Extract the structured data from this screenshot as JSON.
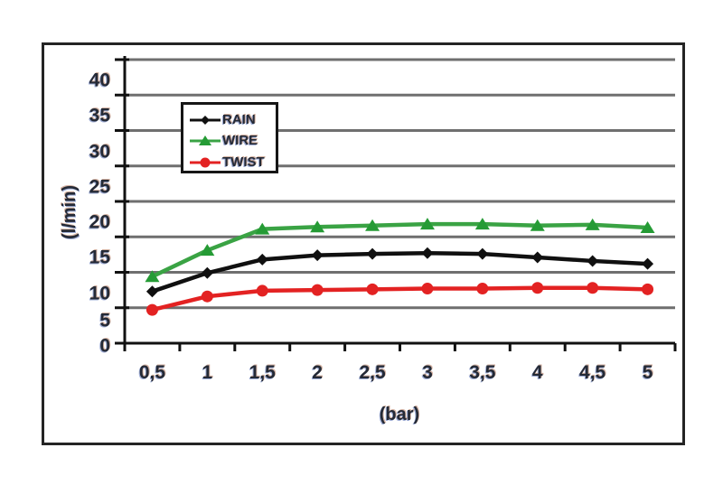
{
  "figure": {
    "type_note": "scanned line chart, no title visible",
    "colors": {
      "rain": "#101010",
      "wire_line": "#3aa344",
      "wire_marker": "#259b35",
      "twist": "#e32222",
      "gridline": "#6f6f6f",
      "axis": "#111111",
      "label_text": "#242a36",
      "frame_border": "#242424",
      "background": "#ffffff"
    }
  },
  "chart_data": {
    "type": "line",
    "title": "",
    "xlabel": "(bar)",
    "ylabel": "(l/min)",
    "x": [
      0.5,
      1,
      1.5,
      2,
      2.5,
      3,
      3.5,
      4,
      4.5,
      5
    ],
    "x_tick_labels": [
      "0,5",
      "1",
      "1,5",
      "2",
      "2,5",
      "3",
      "3,5",
      "4",
      "4,5",
      "5"
    ],
    "yticks": [
      0,
      5,
      10,
      15,
      20,
      25,
      30,
      35,
      40
    ],
    "y_tick_labels": [
      "0",
      "5",
      "10",
      "15",
      "20",
      "25",
      "30",
      "35",
      "40"
    ],
    "ylim": [
      0,
      40
    ],
    "grid": "horizontal-gray",
    "legend_position": "upper-left-inside",
    "series": [
      {
        "name": "RAIN",
        "marker": "diamond",
        "color": "#101010",
        "line_color": "#101010",
        "values": [
          7.3,
          9.9,
          11.8,
          12.4,
          12.6,
          12.7,
          12.6,
          12.1,
          11.6,
          11.2
        ]
      },
      {
        "name": "WIRE",
        "marker": "triangle",
        "color": "#259b35",
        "line_color": "#3aa344",
        "values": [
          9.4,
          13.1,
          16.1,
          16.4,
          16.6,
          16.8,
          16.8,
          16.6,
          16.7,
          16.3
        ]
      },
      {
        "name": "TWIST",
        "marker": "circle",
        "color": "#e32222",
        "line_color": "#e32222",
        "values": [
          4.7,
          6.6,
          7.4,
          7.5,
          7.6,
          7.7,
          7.7,
          7.8,
          7.8,
          7.6
        ]
      }
    ]
  }
}
